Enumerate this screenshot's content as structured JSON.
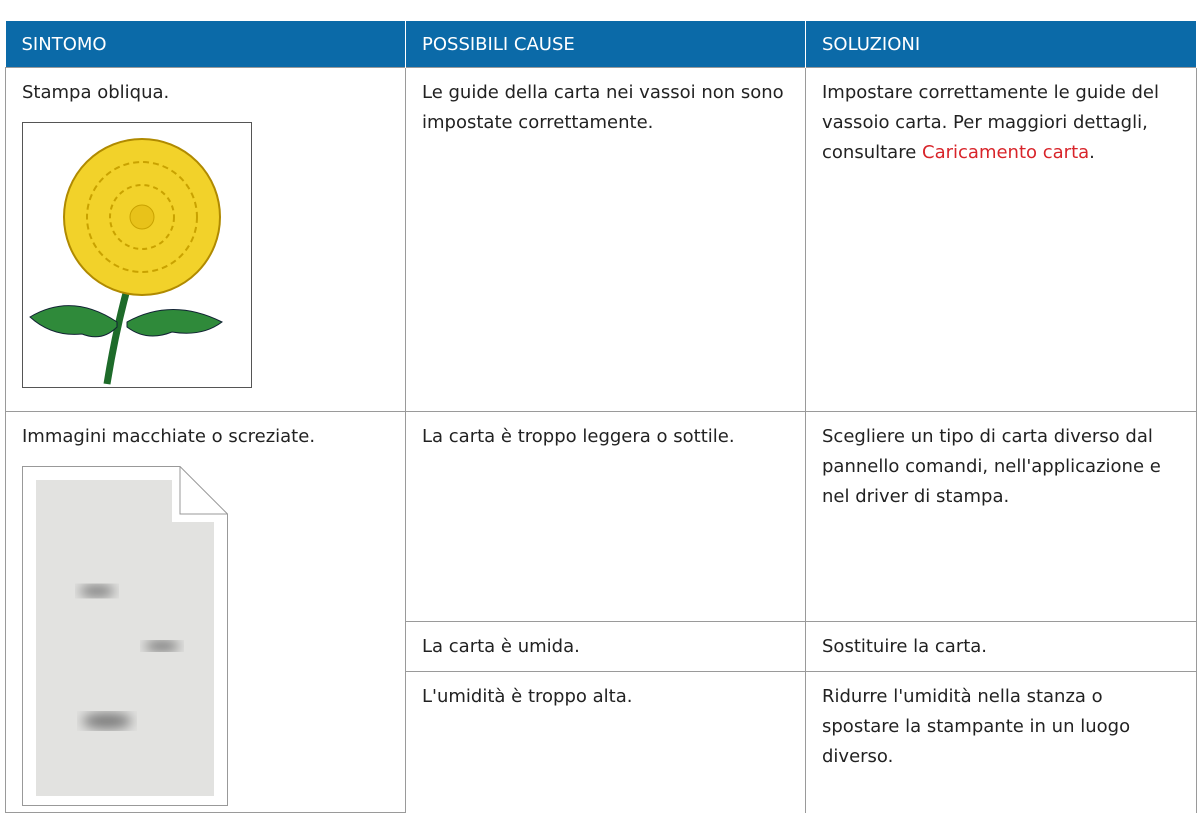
{
  "table": {
    "header": [
      "SINTOMO",
      "POSSIBILI CAUSE",
      "SOLUZIONI"
    ],
    "rows": [
      {
        "symptom": "Stampa obliqua.",
        "causes": [
          {
            "cause": "Le guide della carta nei vassoi non sono impostate correttamente.",
            "solution": "Impostare correttamente le guide del vassoio carta. Per maggiori dettagli, consultare",
            "link": "Caricamento carta",
            "solution_end": "."
          }
        ]
      },
      {
        "symptom": "Immagini macchiate o screziate.",
        "causes": [
          {
            "cause": "La carta è troppo leggera o sottile.",
            "solution": "Scegliere un tipo di carta diverso dal pannello comandi, nell'applicazione e nel driver di stampa."
          },
          {
            "cause": "La carta è umida.",
            "solution": "Sostituire la carta."
          },
          {
            "cause": "L'umidità è troppo alta.",
            "solution": "Ridurre l'umidità nella stanza o spostare la stampante in un luogo diverso."
          }
        ]
      }
    ]
  }
}
